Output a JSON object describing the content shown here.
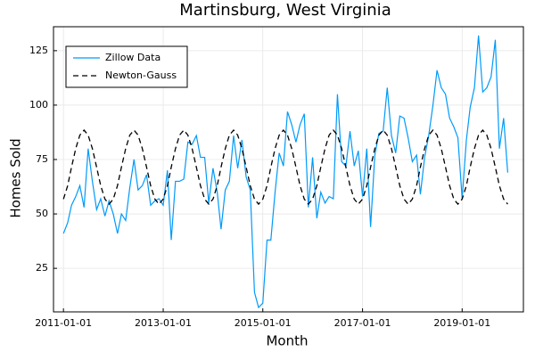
{
  "chart_data": {
    "type": "line",
    "title": "Martinsburg, West Virginia",
    "x_label": "Month",
    "y_label": "Homes Sold",
    "x": [
      "2011-01-01",
      "2011-02-01",
      "2011-03-01",
      "2011-04-01",
      "2011-05-01",
      "2011-06-01",
      "2011-07-01",
      "2011-08-01",
      "2011-09-01",
      "2011-10-01",
      "2011-11-01",
      "2011-12-01",
      "2012-01-01",
      "2012-02-01",
      "2012-03-01",
      "2012-04-01",
      "2012-05-01",
      "2012-06-01",
      "2012-07-01",
      "2012-08-01",
      "2012-09-01",
      "2012-10-01",
      "2012-11-01",
      "2012-12-01",
      "2013-01-01",
      "2013-02-01",
      "2013-03-01",
      "2013-04-01",
      "2013-05-01",
      "2013-06-01",
      "2013-07-01",
      "2013-08-01",
      "2013-09-01",
      "2013-10-01",
      "2013-11-01",
      "2013-12-01",
      "2014-01-01",
      "2014-02-01",
      "2014-03-01",
      "2014-04-01",
      "2014-05-01",
      "2014-06-01",
      "2014-07-01",
      "2014-08-01",
      "2014-09-01",
      "2014-10-01",
      "2014-11-01",
      "2014-12-01",
      "2015-01-01",
      "2015-02-01",
      "2015-03-01",
      "2015-04-01",
      "2015-05-01",
      "2015-06-01",
      "2015-07-01",
      "2015-08-01",
      "2015-09-01",
      "2015-10-01",
      "2015-11-01",
      "2015-12-01",
      "2016-01-01",
      "2016-02-01",
      "2016-03-01",
      "2016-04-01",
      "2016-05-01",
      "2016-06-01",
      "2016-07-01",
      "2016-08-01",
      "2016-09-01",
      "2016-10-01",
      "2016-11-01",
      "2016-12-01",
      "2017-01-01",
      "2017-02-01",
      "2017-03-01",
      "2017-04-01",
      "2017-05-01",
      "2017-06-01",
      "2017-07-01",
      "2017-08-01",
      "2017-09-01",
      "2017-10-01",
      "2017-11-01",
      "2017-12-01",
      "2018-01-01",
      "2018-02-01",
      "2018-03-01",
      "2018-04-01",
      "2018-05-01",
      "2018-06-01",
      "2018-07-01",
      "2018-08-01",
      "2018-09-01",
      "2018-10-01",
      "2018-11-01",
      "2018-12-01",
      "2019-01-01",
      "2019-02-01",
      "2019-03-01",
      "2019-04-01",
      "2019-05-01",
      "2019-06-01",
      "2019-07-01",
      "2019-08-01",
      "2019-09-01",
      "2019-10-01",
      "2019-11-01",
      "2019-12-01"
    ],
    "series": [
      {
        "name": "Zillow Data",
        "color": "#009af9",
        "dash": false,
        "values": [
          41,
          46,
          54,
          58,
          63,
          53,
          80,
          65,
          52,
          57,
          49,
          56,
          50,
          41,
          50,
          47,
          62,
          75,
          61,
          63,
          68,
          54,
          56,
          57,
          54,
          70,
          38,
          65,
          65,
          66,
          83,
          82,
          86,
          76,
          76,
          55,
          71,
          60,
          43,
          61,
          65,
          86,
          71,
          84,
          67,
          61,
          14,
          7,
          9,
          38,
          38,
          60,
          78,
          72,
          97,
          91,
          83,
          91,
          96,
          53,
          76,
          48,
          60,
          55,
          58,
          57,
          105,
          74,
          72,
          88,
          72,
          79,
          58,
          80,
          44,
          77,
          87,
          88,
          108,
          86,
          78,
          95,
          94,
          85,
          74,
          77,
          59,
          76,
          86,
          100,
          116,
          108,
          105,
          94,
          90,
          85,
          57,
          84,
          99,
          108,
          132,
          106,
          108,
          113,
          130,
          80,
          94,
          69
        ]
      },
      {
        "name": "Newton-Gauss",
        "color": "#000000",
        "dash": true,
        "values": [
          56.8,
          63,
          71.5,
          80,
          86.2,
          88.5,
          86.2,
          80,
          71.5,
          63,
          56.8,
          54.5,
          56.8,
          63,
          71.5,
          80,
          86.2,
          88.5,
          86.2,
          80,
          71.5,
          63,
          56.8,
          54.5,
          56.8,
          63,
          71.5,
          80,
          86.2,
          88.5,
          86.2,
          80,
          71.5,
          63,
          56.8,
          54.5,
          56.8,
          63,
          71.5,
          80,
          86.2,
          88.5,
          86.2,
          80,
          71.5,
          63,
          56.8,
          54.5,
          56.8,
          63,
          71.5,
          80,
          86.2,
          88.5,
          86.2,
          80,
          71.5,
          63,
          56.8,
          54.5,
          56.8,
          63,
          71.5,
          80,
          86.2,
          88.5,
          86.2,
          80,
          71.5,
          63,
          56.8,
          54.5,
          56.8,
          63,
          71.5,
          80,
          86.2,
          88.5,
          86.2,
          80,
          71.5,
          63,
          56.8,
          54.5,
          56.8,
          63,
          71.5,
          80,
          86.2,
          88.5,
          86.2,
          80,
          71.5,
          63,
          56.8,
          54.5,
          56.8,
          63,
          71.5,
          80,
          86.2,
          88.5,
          86.2,
          80,
          71.5,
          63,
          56.8,
          54.5
        ]
      }
    ],
    "xlim": [
      "2010-10-20",
      "2020-03-25"
    ],
    "xticks": [
      "2011-01-01",
      "2013-01-01",
      "2015-01-01",
      "2017-01-01",
      "2019-01-01"
    ],
    "ylim": [
      5,
      136
    ],
    "yticks": [
      25,
      50,
      75,
      100,
      125
    ],
    "grid": true,
    "legend": "top-left"
  }
}
